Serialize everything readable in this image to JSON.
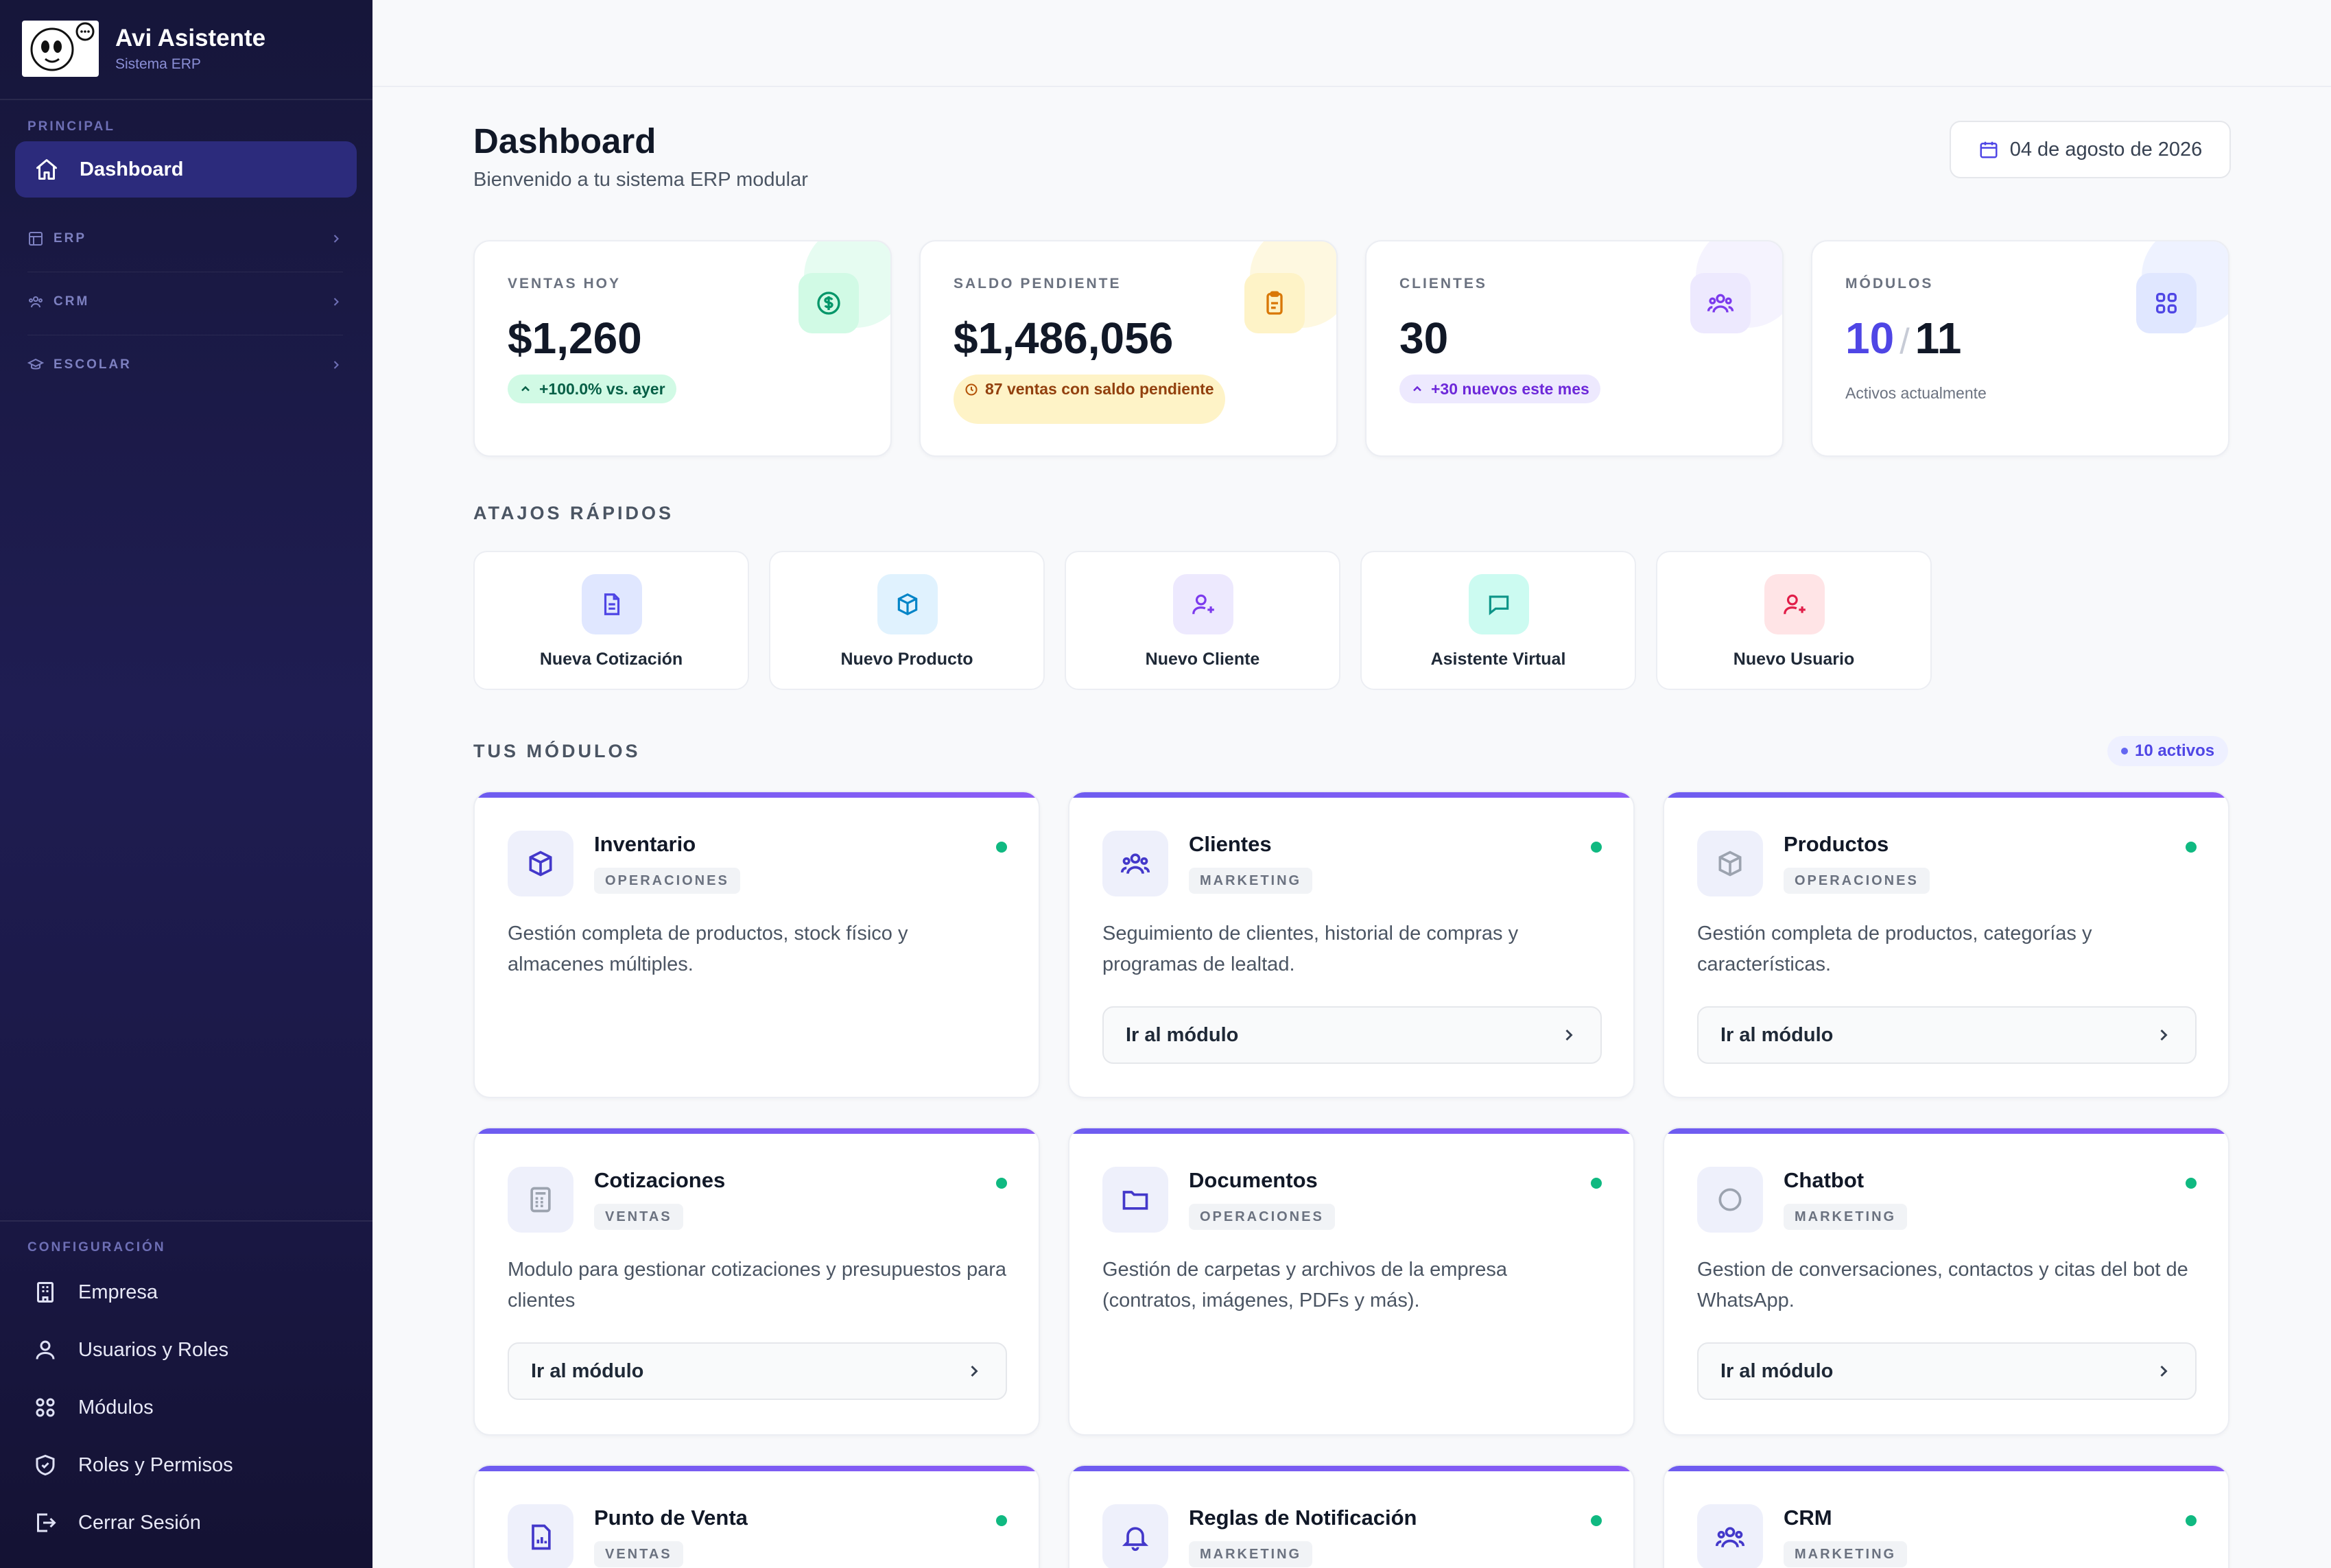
{
  "brand": {
    "title": "Avi Asistente",
    "subtitle": "Sistema ERP"
  },
  "sidebar": {
    "section_principal": "PRINCIPAL",
    "active_item": {
      "label": "Dashboard",
      "icon": "home-icon"
    },
    "groups": [
      {
        "label": "ERP",
        "icon": "grid-table-icon"
      },
      {
        "label": "CRM",
        "icon": "users-icon"
      },
      {
        "label": "ESCOLAR",
        "icon": "graduation-cap-icon"
      }
    ],
    "section_config": "CONFIGURACIÓN",
    "config_items": [
      {
        "label": "Empresa",
        "icon": "building-icon"
      },
      {
        "label": "Usuarios y Roles",
        "icon": "users-icon"
      },
      {
        "label": "Módulos",
        "icon": "grid-icon"
      },
      {
        "label": "Roles y Permisos",
        "icon": "shield-icon"
      },
      {
        "label": "Cerrar Sesión",
        "icon": "logout-icon"
      }
    ]
  },
  "header": {
    "title": "Dashboard",
    "subtitle": "Bienvenido a tu sistema ERP modular",
    "date": "04 de agosto de 2026"
  },
  "stats": [
    {
      "label": "VENTAS HOY",
      "value": "$1,260",
      "pill": "+100.0% vs. ayer",
      "icon": "dollar-icon",
      "accent": "#10b981"
    },
    {
      "label": "SALDO PENDIENTE",
      "value": "$1,486,056",
      "pill": "87 ventas con saldo pendiente",
      "icon": "clipboard-icon",
      "accent": "#f59e0b"
    },
    {
      "label": "CLIENTES",
      "value": "30",
      "pill": "+30 nuevos este mes",
      "icon": "users-icon",
      "accent": "#7c3aed"
    },
    {
      "label": "MÓDULOS",
      "value_active": "10",
      "value_sep": "/",
      "value_total": "11",
      "note": "Activos actualmente",
      "icon": "grid-icon",
      "accent": "#4f46e5"
    }
  ],
  "shortcuts": {
    "title": "ATAJOS RÁPIDOS",
    "items": [
      {
        "label": "Nueva Cotización",
        "icon": "file-text-icon"
      },
      {
        "label": "Nuevo Producto",
        "icon": "box-icon"
      },
      {
        "label": "Nuevo Cliente",
        "icon": "user-plus-icon"
      },
      {
        "label": "Asistente Virtual",
        "icon": "message-icon"
      },
      {
        "label": "Nuevo Usuario",
        "icon": "user-plus-icon"
      }
    ]
  },
  "modules": {
    "title": "TUS MÓDULOS",
    "badge": "10 activos",
    "go_label": "Ir al módulo",
    "items": [
      {
        "name": "Inventario",
        "category": "OPERACIONES",
        "desc": "Gestión completa de productos, stock físico y almacenes múltiples.",
        "icon": "box-icon",
        "has_button": false
      },
      {
        "name": "Clientes",
        "category": "MARKETING",
        "desc": "Seguimiento de clientes, historial de compras y programas de lealtad.",
        "icon": "users-icon",
        "has_button": true
      },
      {
        "name": "Productos",
        "category": "OPERACIONES",
        "desc": "Gestión completa de productos, categorías y características.",
        "icon": "box-icon",
        "has_button": true
      },
      {
        "name": "Cotizaciones",
        "category": "VENTAS",
        "desc": "Modulo para gestionar cotizaciones y presupuestos para clientes",
        "icon": "calculator-icon",
        "has_button": true
      },
      {
        "name": "Documentos",
        "category": "OPERACIONES",
        "desc": "Gestión de carpetas y archivos de la empresa (contratos, imágenes, PDFs y más).",
        "icon": "folder-icon",
        "has_button": false
      },
      {
        "name": "Chatbot",
        "category": "MARKETING",
        "desc": "Gestion de conversaciones, contactos y citas del bot de WhatsApp.",
        "icon": "chat-icon",
        "has_button": true
      },
      {
        "name": "Punto de Venta",
        "category": "VENTAS",
        "desc": "",
        "icon": "receipt-chart-icon",
        "has_button": false
      },
      {
        "name": "Reglas de Notificación",
        "category": "MARKETING",
        "desc": "",
        "icon": "bell-icon",
        "has_button": false
      },
      {
        "name": "CRM",
        "category": "MARKETING",
        "desc": "",
        "icon": "users-icon",
        "has_button": false
      }
    ]
  }
}
